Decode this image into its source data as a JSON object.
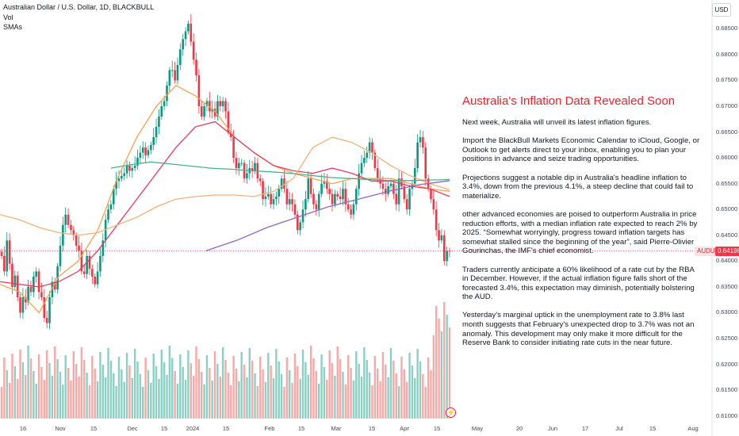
{
  "header": {
    "symbol_title": "Australian Dollar / U.S. Dollar, 1D, BLACKBULL",
    "vol_label": "Vol",
    "smas_label": "SMAs",
    "currency_button": "USD"
  },
  "price_axis": {
    "ticks": [
      "0.68500",
      "0.68000",
      "0.67500",
      "0.67000",
      "0.66500",
      "0.66000",
      "0.65500",
      "0.65000",
      "0.64500",
      "0.64000",
      "0.63500",
      "0.63000",
      "0.62500",
      "0.62000",
      "0.61500",
      "0.61000"
    ],
    "symbol_tag": "AUDUSD",
    "last_price": "0.64196"
  },
  "time_axis": {
    "ticks": [
      "16",
      "Nov",
      "15",
      "Dec",
      "15",
      "2024",
      "15",
      "Feb",
      "15",
      "Mar",
      "15",
      "Apr",
      "15",
      "May",
      "20",
      "Jun",
      "17",
      "Jul",
      "15",
      "Aug"
    ]
  },
  "article": {
    "title": "Australia's Inflation Data Revealed Soon",
    "paragraphs": [
      "Next week, Australia will unveil its latest inflation figures.",
      "Import the BlackBull Markets Economic Calendar to iCloud, Google, or Outlook to get alerts direct to your inbox, enabling you to plan your positions in advance and seize trading opportunities.",
      "Projections suggest a notable dip in Australia's headline inflation to 3.4%, down from the previous 4.1%, a steep decline that could fail to materialize.",
      "other advanced economies are poised to outperform Australia in price reduction efforts, with a median inflation rate expected to reach 2% by 2025. “Somewhat worryingly, progress toward inflation targets has somewhat stalled since the beginning of the year”, said Pierre-Olivier Gourinchas, the IMF's chief economist.",
      "Traders currently anticipate a 60% likelihood of a rate cut by the RBA in December. However, if the actual inflation figure falls short of the forecasted 3.4%, this expectation may diminish, potentially bolstering the AUD.",
      "Yesterday's marginal uptick in the unemployment rate to 3.8% last month suggests that February's unexpected drop to 3.7% was not an anomaly. This development may only make it more difficult for the Reserve Bank to consider initiating rate cuts in the near future."
    ]
  },
  "colors": {
    "up": "#089981",
    "down": "#f23645",
    "vol_up": "#8ccfc3",
    "vol_down": "#f7a9a7",
    "sma_fast": "#f7a350",
    "sma_mid": "#e33e62",
    "sma_slow": "#f0b27a",
    "sma_long": "#4caf8e",
    "sma_longer": "#8e66c2",
    "accent": "#e8262e"
  },
  "chart_data": {
    "type": "candlestick",
    "symbol": "AUDUSD",
    "ylim": [
      0.6095,
      0.6875
    ],
    "last_price": 0.64196,
    "closes": [
      0.641,
      0.638,
      0.644,
      0.6395,
      0.635,
      0.6372,
      0.633,
      0.63,
      0.633,
      0.632,
      0.635,
      0.634,
      0.637,
      0.638,
      0.634,
      0.633,
      0.629,
      0.628,
      0.633,
      0.636,
      0.6345,
      0.639,
      0.643,
      0.647,
      0.649,
      0.647,
      0.646,
      0.645,
      0.643,
      0.642,
      0.638,
      0.6375,
      0.641,
      0.6385,
      0.637,
      0.6355,
      0.638,
      0.641,
      0.644,
      0.648,
      0.65,
      0.651,
      0.654,
      0.6555,
      0.656,
      0.6565,
      0.657,
      0.6585,
      0.6575,
      0.658,
      0.6585,
      0.66,
      0.661,
      0.662,
      0.6605,
      0.6615,
      0.6625,
      0.664,
      0.666,
      0.668,
      0.67,
      0.671,
      0.674,
      0.677,
      0.677,
      0.675,
      0.678,
      0.681,
      0.683,
      0.6845,
      0.686,
      0.6825,
      0.679,
      0.676,
      0.67,
      0.668,
      0.67,
      0.671,
      0.669,
      0.6695,
      0.668,
      0.671,
      0.67,
      0.671,
      0.669,
      0.665,
      0.664,
      0.66,
      0.658,
      0.659,
      0.659,
      0.656,
      0.657,
      0.658,
      0.6575,
      0.659,
      0.656,
      0.6555,
      0.652,
      0.6525,
      0.653,
      0.651,
      0.652,
      0.6525,
      0.654,
      0.656,
      0.654,
      0.651,
      0.652,
      0.651,
      0.649,
      0.646,
      0.6475,
      0.65,
      0.652,
      0.656,
      0.653,
      0.651,
      0.65,
      0.653,
      0.655,
      0.6555,
      0.654,
      0.653,
      0.651,
      0.653,
      0.6525,
      0.652,
      0.654,
      0.651,
      0.65,
      0.649,
      0.651,
      0.654,
      0.657,
      0.659,
      0.66,
      0.661,
      0.663,
      0.661,
      0.658,
      0.656,
      0.655,
      0.654,
      0.653,
      0.6545,
      0.655,
      0.653,
      0.651,
      0.656,
      0.6545,
      0.652,
      0.65,
      0.654,
      0.655,
      0.658,
      0.663,
      0.664,
      0.662,
      0.656,
      0.654,
      0.652,
      0.65,
      0.646,
      0.644,
      0.645,
      0.64,
      0.642,
      0.6419
    ],
    "smas": [
      {
        "name": "SMA fast",
        "values": [
          0.6355,
          0.634,
          0.63,
          0.637,
          0.64,
          0.646,
          0.656,
          0.664,
          0.67,
          0.674,
          0.672,
          0.669,
          0.664,
          0.661,
          0.6585,
          0.657,
          0.656,
          0.655,
          0.656,
          0.656,
          0.656,
          0.655,
          0.654,
          0.6535
        ]
      },
      {
        "name": "SMA mid",
        "values": [
          0.636,
          0.6355,
          0.635,
          0.636,
          0.638,
          0.642,
          0.647,
          0.652,
          0.657,
          0.662,
          0.666,
          0.667,
          0.664,
          0.661,
          0.6585,
          0.6575,
          0.657,
          0.658,
          0.657,
          0.6555,
          0.6555,
          0.6545,
          0.654,
          0.6525
        ]
      },
      {
        "name": "SMA slow",
        "values": [
          0.649,
          0.648,
          0.6465,
          0.6455,
          0.645,
          0.6455,
          0.647,
          0.6485,
          0.6505,
          0.652,
          0.6525,
          0.6528,
          0.6528,
          0.6525,
          0.6535,
          0.656,
          0.662,
          0.664,
          0.663,
          0.661,
          0.6585,
          0.6565,
          0.655,
          0.6538
        ]
      },
      {
        "name": "SMA long",
        "values": [
          0.658,
          0.6587,
          0.6592,
          0.6588,
          0.6584,
          0.658,
          0.6578,
          0.6575,
          0.6573,
          0.657,
          0.6566,
          0.6562,
          0.656,
          0.6558,
          0.6556,
          0.6556,
          0.6557,
          0.6558
        ]
      },
      {
        "name": "SMA longer",
        "values": [
          0.642,
          0.644,
          0.6465,
          0.6485,
          0.6505,
          0.652,
          0.6535,
          0.6548,
          0.6556
        ]
      }
    ]
  }
}
